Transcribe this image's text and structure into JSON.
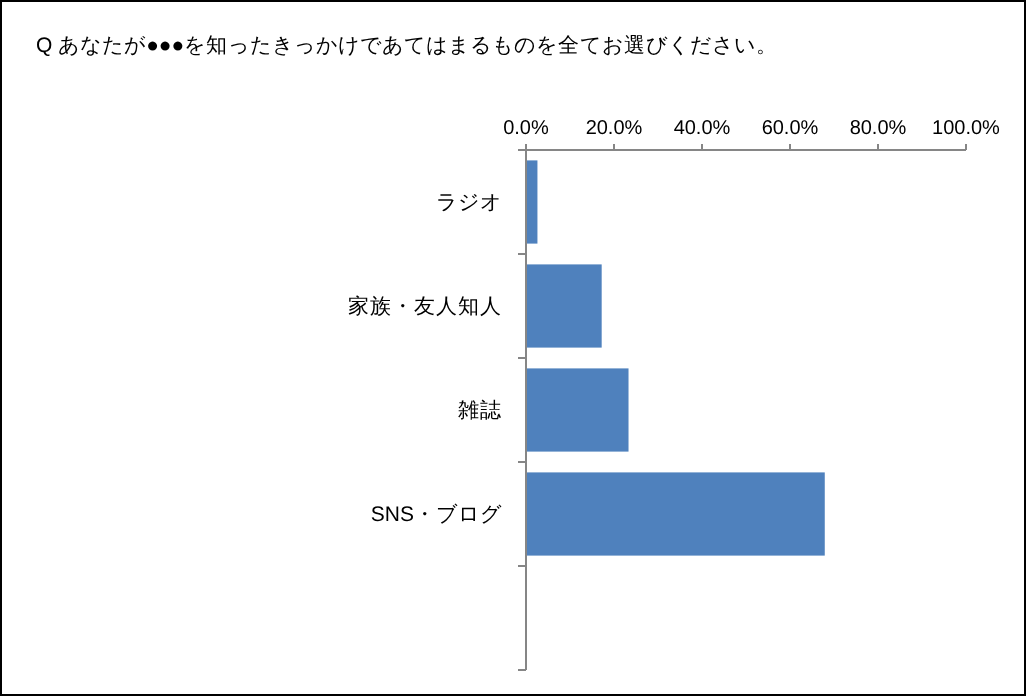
{
  "chart_data": {
    "type": "bar",
    "orientation": "horizontal",
    "title": "Q あなたが●●●を知ったきっかけであてはまるものを全てお選びください。",
    "categories": [
      "ラジオ",
      "家族・友人知人",
      "雑誌",
      "SNS・ブログ",
      null
    ],
    "values": [
      2.6,
      17.2,
      23.3,
      67.9,
      null
    ],
    "color": "#4f81bd",
    "xlim": [
      0,
      100
    ],
    "xticks": [
      {
        "value": 0,
        "label": "0.0%"
      },
      {
        "value": 20,
        "label": "20.0%"
      },
      {
        "value": 40,
        "label": "40.0%"
      },
      {
        "value": 60,
        "label": "60.0%"
      },
      {
        "value": 80,
        "label": "80.0%"
      },
      {
        "value": 100,
        "label": "100.0%"
      }
    ],
    "grid": false
  }
}
